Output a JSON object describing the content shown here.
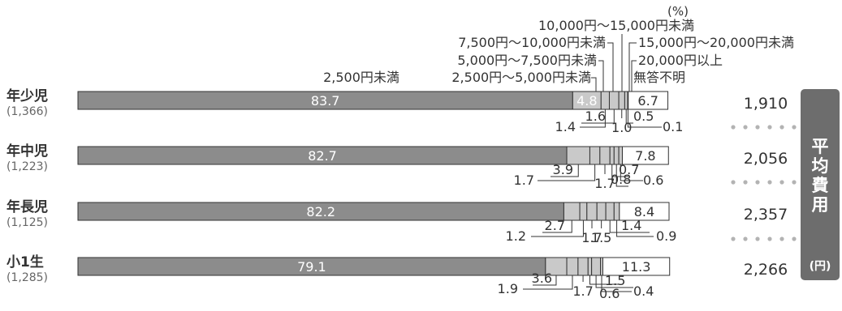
{
  "chart_data": {
    "type": "bar",
    "orientation": "horizontal",
    "stacked": true,
    "unit": "(%)",
    "categories": [
      "2,500円未満",
      "2,500円～5,000円未満",
      "5,000円～7,500円未満",
      "7,500円～10,000円未満",
      "10,000円～15,000円未満",
      "15,000円～20,000円未満",
      "20,000円以上",
      "無答不明"
    ],
    "rows": [
      {
        "label": "年少児",
        "n": "(1,366)",
        "values": [
          83.7,
          4.8,
          1.4,
          1.6,
          1.0,
          0.5,
          0.1,
          6.7
        ],
        "avg": "1,910"
      },
      {
        "label": "年中児",
        "n": "(1,223)",
        "values": [
          82.7,
          3.9,
          1.7,
          1.7,
          0.7,
          0.8,
          0.6,
          7.8
        ],
        "avg": "2,056"
      },
      {
        "label": "年長児",
        "n": "(1,125)",
        "values": [
          82.2,
          2.7,
          1.2,
          1.7,
          1.5,
          1.4,
          0.9,
          8.4
        ],
        "avg": "2,357"
      },
      {
        "label": "小1生",
        "n": "(1,285)",
        "values": [
          79.1,
          3.6,
          1.9,
          1.7,
          0.6,
          1.5,
          0.4,
          11.3
        ],
        "avg": "2,266"
      }
    ],
    "side_label": "平均費用",
    "side_unit": "(円)",
    "colors": {
      "main": "#8c8c8c",
      "light": "#c9c9c9",
      "none": "#ffffff",
      "stroke": "#333333",
      "text": "#333333",
      "side_bg": "#6d6d6d"
    }
  }
}
